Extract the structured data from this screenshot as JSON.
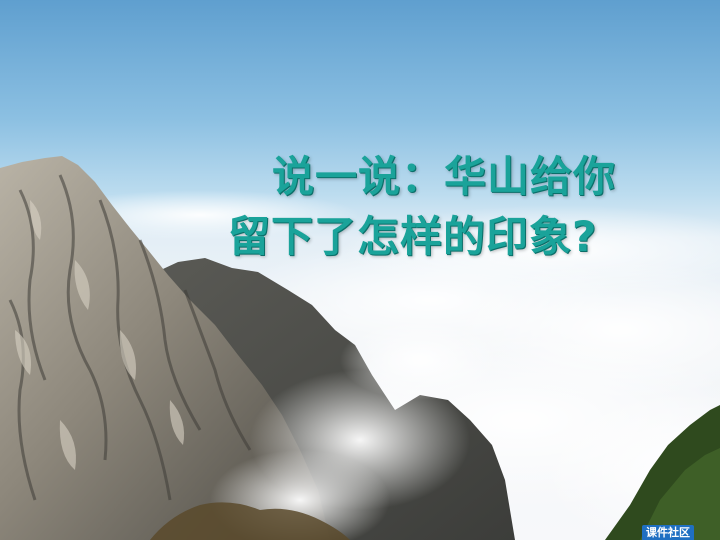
{
  "slide": {
    "caption_line_1": "说一说：华山给你",
    "caption_line_2": "留下了怎样的印象?",
    "watermark": "课件社区"
  },
  "colors": {
    "caption_text": "#1aa39a",
    "sky_top": "#5f9fcf",
    "cloud": "#f7f8fa",
    "rock": "#8c877c",
    "foliage": "#2f4a1e"
  }
}
